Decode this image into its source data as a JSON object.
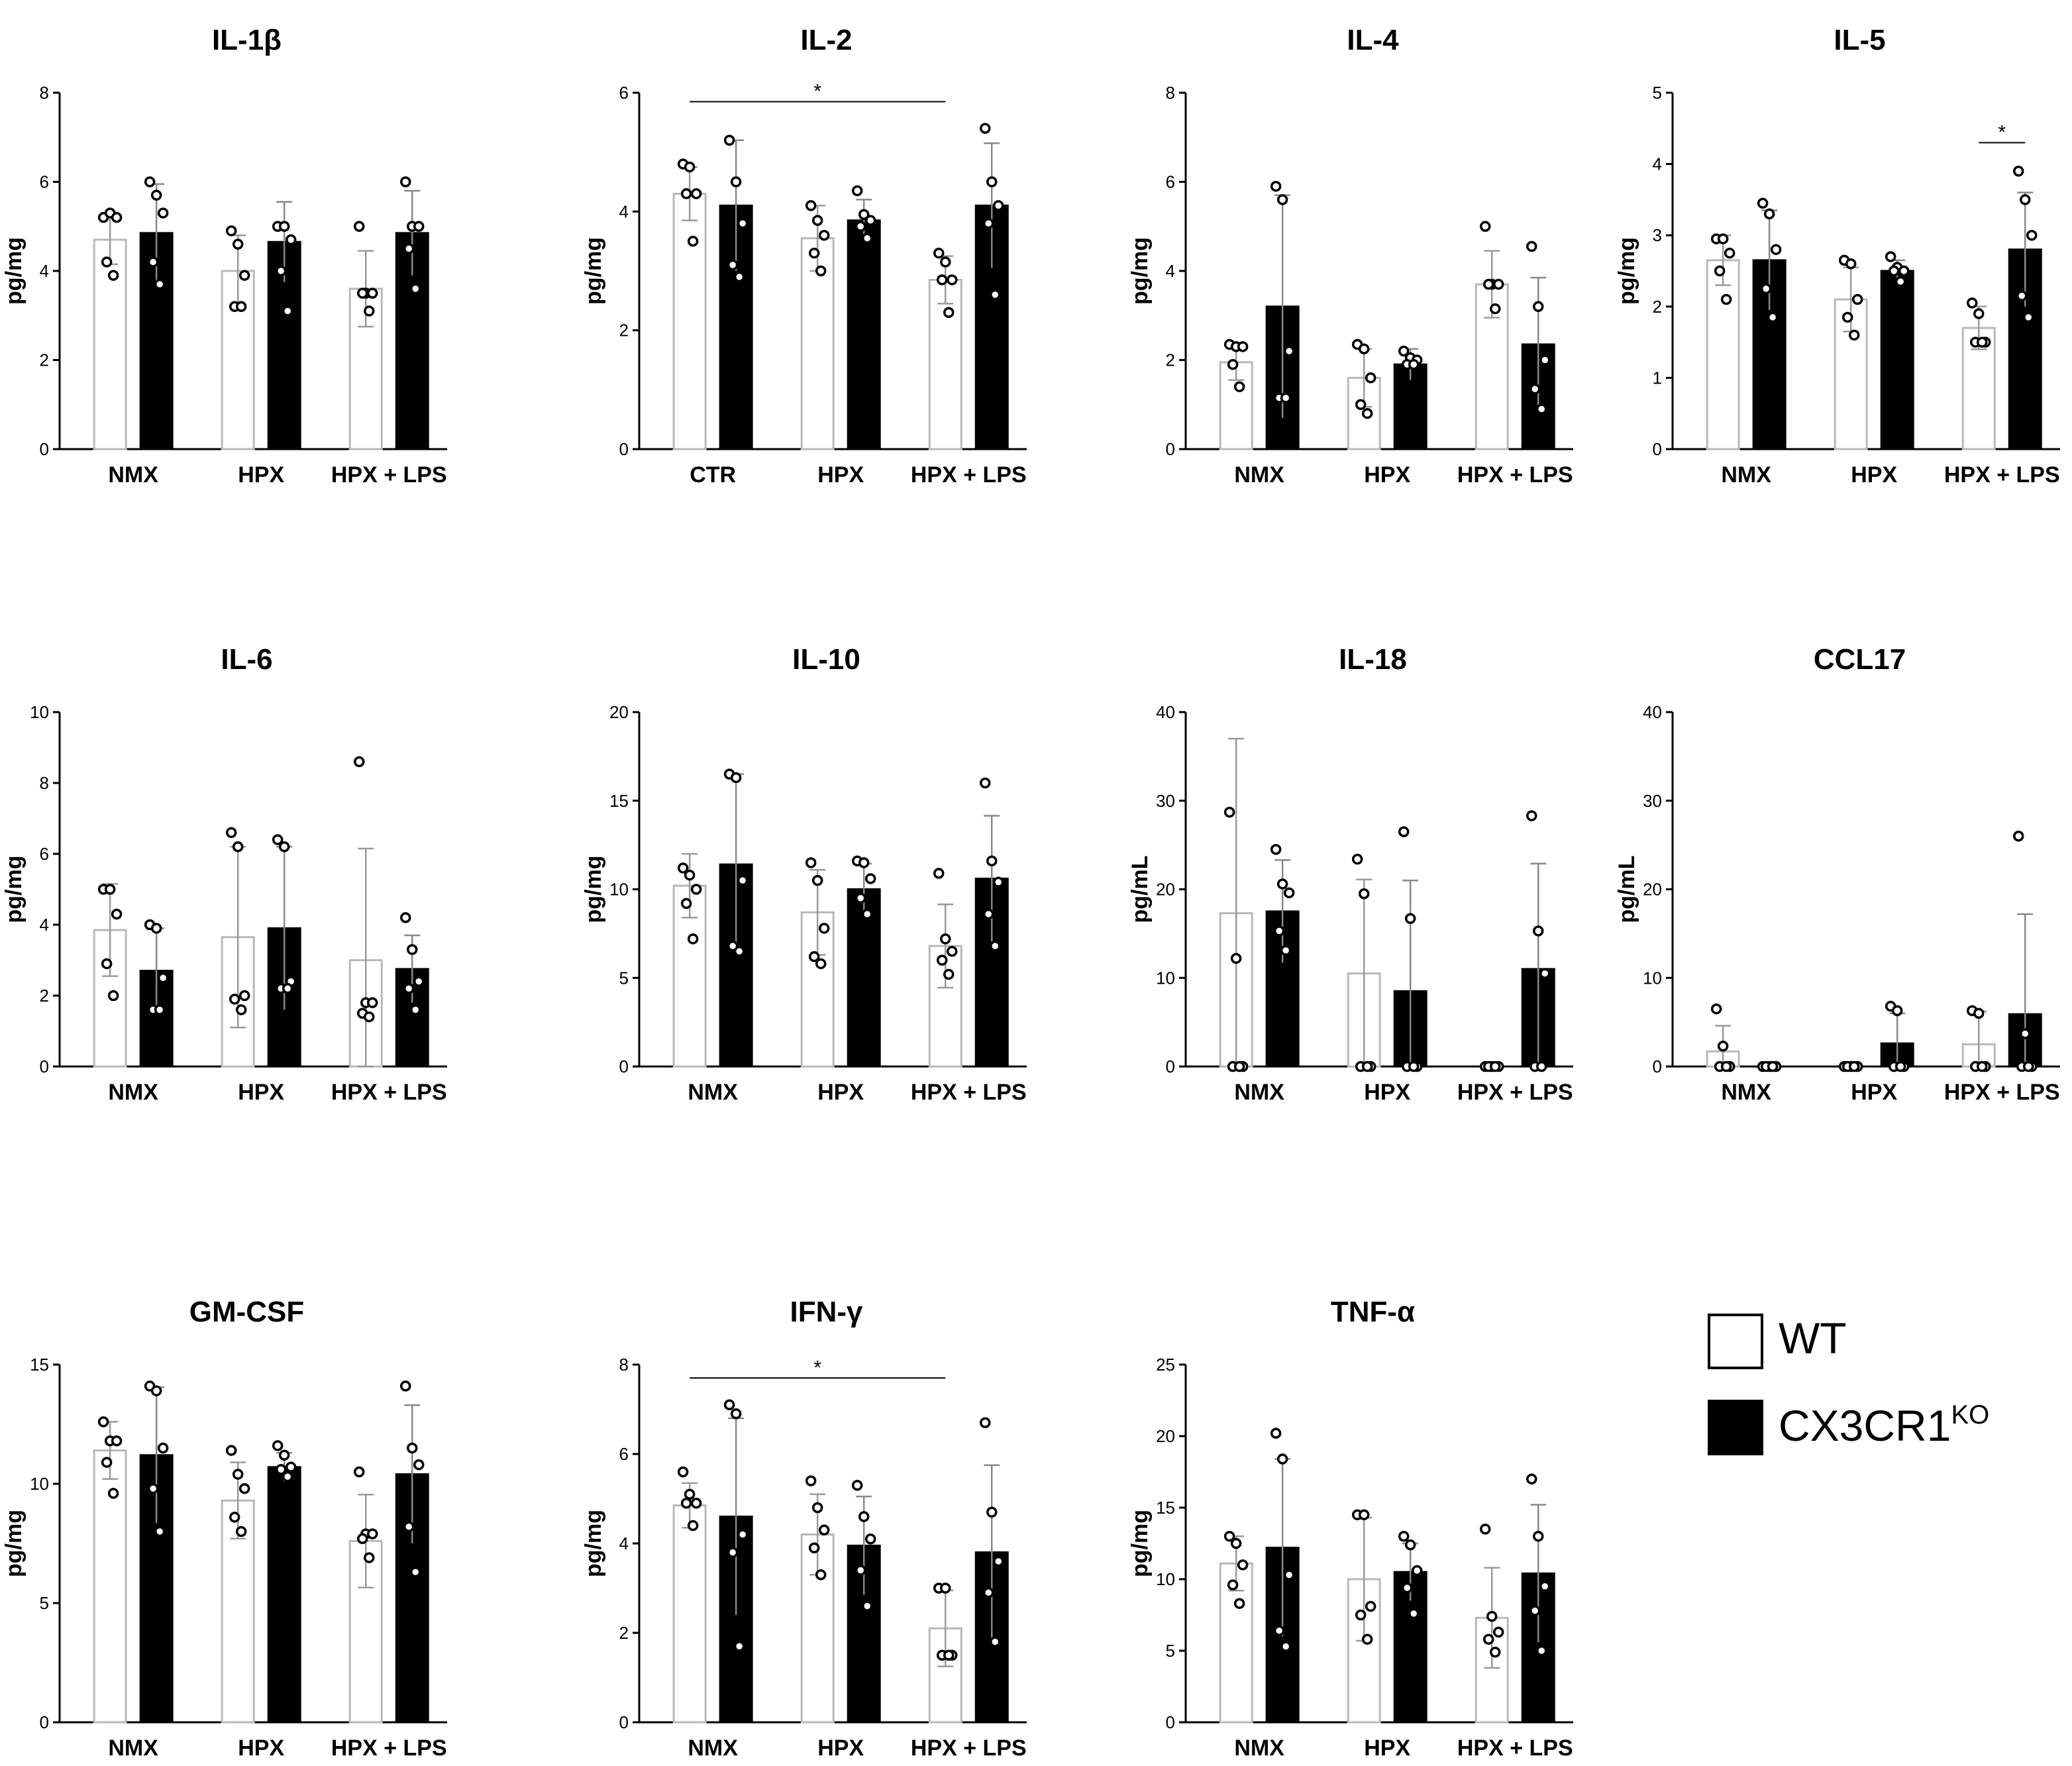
{
  "legend": {
    "items": [
      {
        "label": "WT",
        "fill": "#ffffff"
      },
      {
        "label": "CX3CR1",
        "superscript": "KO",
        "fill": "#000000"
      }
    ]
  },
  "chart_data": [
    {
      "type": "bar",
      "title": "IL-1β",
      "ylabel": "pg/mg",
      "ylim": [
        0,
        8
      ],
      "yticks": [
        0,
        2,
        4,
        6,
        8
      ],
      "categories": [
        "NMX",
        "HPX",
        "HPX + LPS"
      ],
      "series": [
        {
          "name": "WT",
          "values": [
            4.7,
            4.0,
            3.6
          ],
          "err": [
            0.55,
            0.8,
            0.85
          ],
          "points": [
            [
              5.2,
              5.3,
              5.2,
              4.2,
              3.9
            ],
            [
              4.9,
              4.6,
              3.9,
              3.2,
              3.2
            ],
            [
              5.0,
              3.5,
              3.5,
              3.5,
              3.1
            ]
          ]
        },
        {
          "name": "CX3CR1KO",
          "values": [
            4.85,
            4.65,
            4.85
          ],
          "err": [
            1.1,
            0.9,
            0.95
          ],
          "points": [
            [
              6.0,
              5.7,
              5.3,
              4.2,
              3.7
            ],
            [
              5.0,
              5.0,
              4.7,
              4.0,
              3.1
            ],
            [
              6.0,
              5.0,
              5.0,
              4.5,
              3.6
            ]
          ]
        }
      ],
      "significance": []
    },
    {
      "type": "bar",
      "title": "IL-2",
      "ylabel": "pg/mg",
      "ylim": [
        0,
        6
      ],
      "yticks": [
        0,
        2,
        4,
        6
      ],
      "categories": [
        "CTR",
        "HPX",
        "HPX + LPS"
      ],
      "series": [
        {
          "name": "WT",
          "values": [
            4.3,
            3.55,
            2.85
          ],
          "err": [
            0.45,
            0.55,
            0.4
          ],
          "points": [
            [
              4.8,
              4.75,
              4.3,
              4.3,
              3.5
            ],
            [
              4.1,
              3.85,
              3.6,
              3.3,
              3.0
            ],
            [
              3.3,
              3.15,
              2.85,
              2.85,
              2.3
            ]
          ]
        },
        {
          "name": "CX3CR1KO",
          "values": [
            4.1,
            3.85,
            4.1
          ],
          "err": [
            1.1,
            0.35,
            1.05
          ],
          "points": [
            [
              5.2,
              4.5,
              3.8,
              3.1,
              2.9
            ],
            [
              4.35,
              3.95,
              3.85,
              3.75,
              3.55
            ],
            [
              5.4,
              4.5,
              4.1,
              3.8,
              2.6
            ]
          ]
        }
      ],
      "significance": [
        {
          "label": "*",
          "from": [
            0,
            0
          ],
          "to": [
            2,
            0
          ],
          "y": 5.85
        }
      ]
    },
    {
      "type": "bar",
      "title": "IL-4",
      "ylabel": "pg/mg",
      "ylim": [
        0,
        8
      ],
      "yticks": [
        0,
        2,
        4,
        6,
        8
      ],
      "categories": [
        "NMX",
        "HPX",
        "HPX + LPS"
      ],
      "series": [
        {
          "name": "WT",
          "values": [
            1.95,
            1.6,
            3.7
          ],
          "err": [
            0.4,
            0.65,
            0.75
          ],
          "points": [
            [
              2.35,
              2.3,
              2.3,
              1.9,
              1.4
            ],
            [
              2.35,
              2.25,
              1.6,
              1.0,
              0.8
            ],
            [
              5.0,
              3.7,
              3.7,
              3.7,
              3.15
            ]
          ]
        },
        {
          "name": "CX3CR1KO",
          "values": [
            3.2,
            1.9,
            2.35
          ],
          "err": [
            2.5,
            0.35,
            1.5
          ],
          "points": [
            [
              5.9,
              5.6,
              2.2,
              1.15,
              1.15
            ],
            [
              2.2,
              2.05,
              2.0,
              1.9,
              1.9
            ],
            [
              4.55,
              3.2,
              2.0,
              1.35,
              0.9
            ]
          ]
        }
      ],
      "significance": []
    },
    {
      "type": "bar",
      "title": "IL-5",
      "ylabel": "pg/mg",
      "ylim": [
        0,
        5
      ],
      "yticks": [
        0,
        1,
        2,
        3,
        4,
        5
      ],
      "categories": [
        "NMX",
        "HPX",
        "HPX + LPS"
      ],
      "series": [
        {
          "name": "WT",
          "values": [
            2.65,
            2.1,
            1.7
          ],
          "err": [
            0.35,
            0.45,
            0.3
          ],
          "points": [
            [
              2.95,
              2.95,
              2.75,
              2.5,
              2.1
            ],
            [
              2.65,
              2.6,
              2.1,
              1.85,
              1.6
            ],
            [
              2.05,
              1.9,
              1.5,
              1.5,
              1.5
            ]
          ]
        },
        {
          "name": "CX3CR1KO",
          "values": [
            2.65,
            2.5,
            2.8
          ],
          "err": [
            0.7,
            0.15,
            0.8
          ],
          "points": [
            [
              3.45,
              3.3,
              2.8,
              2.25,
              1.85
            ],
            [
              2.7,
              2.55,
              2.5,
              2.5,
              2.35
            ],
            [
              3.9,
              3.5,
              3.0,
              2.15,
              1.85
            ]
          ]
        }
      ],
      "significance": [
        {
          "label": "*",
          "from": [
            2,
            0
          ],
          "to": [
            2,
            1
          ],
          "y": 4.3
        }
      ]
    },
    {
      "type": "bar",
      "title": "IL-6",
      "ylabel": "pg/mg",
      "ylim": [
        0,
        10
      ],
      "yticks": [
        0,
        2,
        4,
        6,
        8,
        10
      ],
      "categories": [
        "NMX",
        "HPX",
        "HPX + LPS"
      ],
      "series": [
        {
          "name": "WT",
          "values": [
            3.85,
            3.65,
            3.0
          ],
          "err": [
            1.3,
            2.55,
            3.15
          ],
          "points": [
            [
              5.0,
              5.0,
              4.3,
              2.9,
              2.0
            ],
            [
              6.6,
              6.2,
              2.0,
              1.9,
              1.6
            ],
            [
              8.6,
              1.8,
              1.8,
              1.5,
              1.4
            ]
          ]
        },
        {
          "name": "CX3CR1KO",
          "values": [
            2.7,
            3.9,
            2.75
          ],
          "err": [
            1.2,
            2.3,
            0.95
          ],
          "points": [
            [
              4.0,
              3.9,
              2.5,
              1.6,
              1.6
            ],
            [
              6.4,
              6.2,
              2.4,
              2.2,
              2.2
            ],
            [
              4.2,
              3.3,
              2.4,
              2.2,
              1.6
            ]
          ]
        }
      ],
      "significance": []
    },
    {
      "type": "bar",
      "title": "IL-10",
      "ylabel": "pg/mg",
      "ylim": [
        0,
        20
      ],
      "yticks": [
        0,
        5,
        10,
        15,
        20
      ],
      "categories": [
        "NMX",
        "HPX",
        "HPX + LPS"
      ],
      "series": [
        {
          "name": "WT",
          "values": [
            10.2,
            8.7,
            6.8
          ],
          "err": [
            1.8,
            2.4,
            2.35
          ],
          "points": [
            [
              11.2,
              10.8,
              10.0,
              9.2,
              7.2
            ],
            [
              11.5,
              10.5,
              7.8,
              6.2,
              5.8
            ],
            [
              10.9,
              7.2,
              6.5,
              6.0,
              5.2
            ]
          ]
        },
        {
          "name": "CX3CR1KO",
          "values": [
            11.4,
            10.0,
            10.6
          ],
          "err": [
            5.1,
            1.45,
            3.55
          ],
          "points": [
            [
              16.5,
              16.3,
              10.5,
              6.8,
              6.5
            ],
            [
              11.6,
              11.5,
              10.6,
              9.5,
              8.6
            ],
            [
              16.0,
              11.6,
              10.4,
              8.6,
              6.8
            ]
          ]
        }
      ],
      "significance": []
    },
    {
      "type": "bar",
      "title": "IL-18",
      "ylabel": "pg/mL",
      "ylim": [
        0,
        40
      ],
      "yticks": [
        0,
        10,
        20,
        30,
        40
      ],
      "categories": [
        "NMX",
        "HPX",
        "HPX + LPS"
      ],
      "series": [
        {
          "name": "WT",
          "values": [
            17.3,
            10.5,
            0
          ],
          "err": [
            19.7,
            10.6,
            0
          ],
          "points": [
            [
              28.7,
              12.2,
              0,
              0,
              0
            ],
            [
              23.4,
              19.5,
              0,
              0,
              0
            ],
            [
              0,
              0,
              0,
              0,
              0
            ]
          ]
        },
        {
          "name": "CX3CR1KO",
          "values": [
            17.5,
            8.5,
            11.0
          ],
          "err": [
            5.8,
            12.5,
            11.9
          ],
          "points": [
            [
              24.5,
              20.6,
              19.6,
              15.3,
              13.1
            ],
            [
              26.5,
              16.7,
              0,
              0,
              0
            ],
            [
              28.3,
              15.3,
              10.5,
              0,
              0
            ]
          ]
        }
      ],
      "significance": []
    },
    {
      "type": "bar",
      "title": "CCL17",
      "ylabel": "pg/mL",
      "ylim": [
        0,
        40
      ],
      "yticks": [
        0,
        10,
        20,
        30,
        40
      ],
      "categories": [
        "NMX",
        "HPX",
        "HPX + LPS"
      ],
      "series": [
        {
          "name": "WT",
          "values": [
            1.7,
            0,
            2.5
          ],
          "err": [
            2.9,
            0,
            3.7
          ],
          "points": [
            [
              6.5,
              2.3,
              0,
              0,
              0
            ],
            [
              0,
              0,
              0,
              0,
              0
            ],
            [
              6.3,
              6.0,
              0,
              0,
              0
            ]
          ]
        },
        {
          "name": "CX3CR1KO",
          "values": [
            0,
            2.6,
            5.9
          ],
          "err": [
            0,
            3.4,
            11.3
          ],
          "points": [
            [
              0,
              0,
              0,
              0,
              0
            ],
            [
              6.8,
              6.3,
              0,
              0,
              0
            ],
            [
              26.0,
              3.7,
              0,
              0,
              0
            ]
          ]
        }
      ],
      "significance": []
    },
    {
      "type": "bar",
      "title": "GM-CSF",
      "ylabel": "pg/mg",
      "ylim": [
        0,
        15
      ],
      "yticks": [
        0,
        5,
        10,
        15
      ],
      "categories": [
        "NMX",
        "HPX",
        "HPX + LPS"
      ],
      "series": [
        {
          "name": "WT",
          "values": [
            11.4,
            9.3,
            7.6
          ],
          "err": [
            1.2,
            1.6,
            1.95
          ],
          "points": [
            [
              12.6,
              11.8,
              11.8,
              10.9,
              9.6
            ],
            [
              11.4,
              10.4,
              9.8,
              8.6,
              8.0
            ],
            [
              10.5,
              7.9,
              7.9,
              7.7,
              6.9
            ]
          ]
        },
        {
          "name": "CX3CR1KO",
          "values": [
            11.2,
            10.7,
            10.4
          ],
          "err": [
            2.85,
            0.6,
            2.9
          ],
          "points": [
            [
              14.1,
              13.9,
              11.5,
              9.8,
              8.0
            ],
            [
              11.6,
              11.2,
              10.7,
              10.6,
              10.3
            ],
            [
              14.1,
              11.5,
              10.8,
              8.2,
              6.3
            ]
          ]
        }
      ],
      "significance": []
    },
    {
      "type": "bar",
      "title": "IFN-γ",
      "ylabel": "pg/mg",
      "ylim": [
        0,
        8
      ],
      "yticks": [
        0,
        2,
        4,
        6,
        8
      ],
      "categories": [
        "NMX",
        "HPX",
        "HPX + LPS"
      ],
      "series": [
        {
          "name": "WT",
          "values": [
            4.85,
            4.2,
            2.1
          ],
          "err": [
            0.5,
            0.9,
            0.85
          ],
          "points": [
            [
              5.6,
              5.1,
              4.9,
              4.9,
              4.4
            ],
            [
              5.4,
              4.8,
              4.3,
              3.9,
              3.3
            ],
            [
              3.0,
              3.0,
              1.5,
              1.5,
              1.5
            ]
          ]
        },
        {
          "name": "CX3CR1KO",
          "values": [
            4.6,
            3.95,
            3.8
          ],
          "err": [
            2.2,
            1.1,
            1.95
          ],
          "points": [
            [
              7.1,
              6.9,
              4.2,
              3.8,
              1.7
            ],
            [
              5.3,
              4.6,
              4.1,
              3.4,
              2.6
            ],
            [
              6.7,
              4.7,
              3.6,
              2.9,
              1.8
            ]
          ]
        }
      ],
      "significance": [
        {
          "label": "*",
          "from": [
            0,
            0
          ],
          "to": [
            2,
            0
          ],
          "y": 7.7
        }
      ]
    },
    {
      "type": "bar",
      "title": "TNF-α",
      "ylabel": "pg/mg",
      "ylim": [
        0,
        25
      ],
      "yticks": [
        0,
        5,
        10,
        15,
        20,
        25
      ],
      "categories": [
        "NMX",
        "HPX",
        "HPX + LPS"
      ],
      "series": [
        {
          "name": "WT",
          "values": [
            11.1,
            10.0,
            7.3
          ],
          "err": [
            1.9,
            4.3,
            3.5
          ],
          "points": [
            [
              13.0,
              12.5,
              11.0,
              9.6,
              8.3
            ],
            [
              14.5,
              14.5,
              8.1,
              7.5,
              5.8
            ],
            [
              13.5,
              7.4,
              6.3,
              5.8,
              4.9
            ]
          ]
        },
        {
          "name": "CX3CR1KO",
          "values": [
            12.2,
            10.5,
            10.4
          ],
          "err": [
            6.2,
            2.0,
            4.8
          ],
          "points": [
            [
              20.2,
              18.4,
              10.3,
              6.4,
              5.3
            ],
            [
              13.0,
              12.4,
              10.6,
              9.4,
              7.6
            ],
            [
              17.0,
              13.0,
              9.5,
              7.8,
              5.0
            ]
          ]
        }
      ],
      "significance": []
    }
  ]
}
